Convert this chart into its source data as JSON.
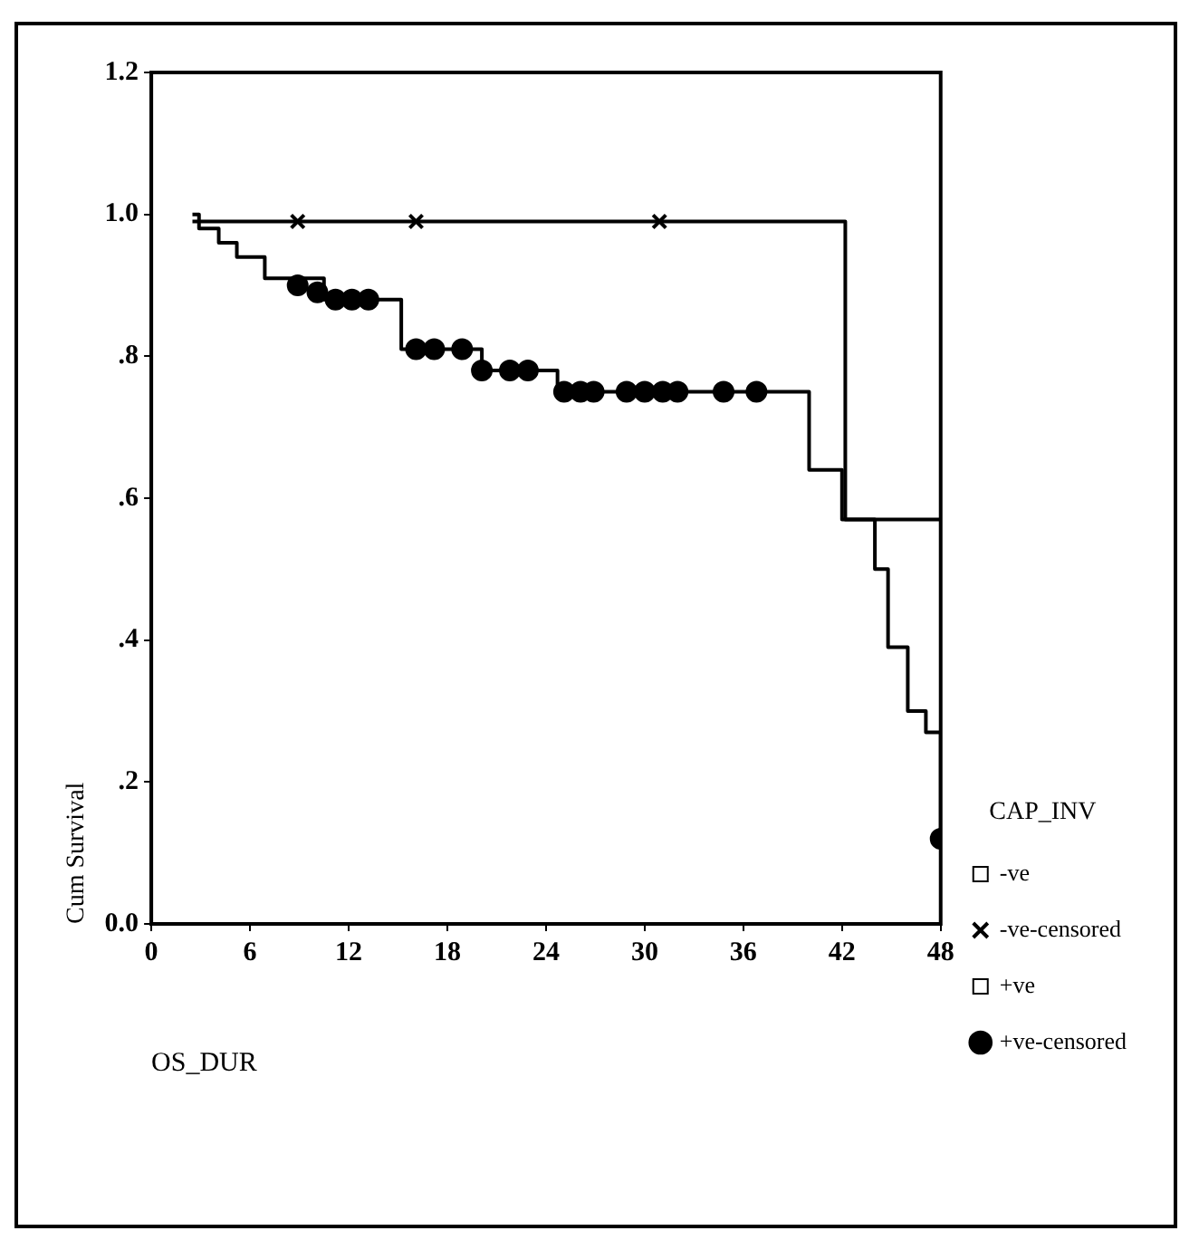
{
  "chart_data": {
    "type": "step",
    "xlabel": "OS_DUR",
    "ylabel": "Cum Survival",
    "legend_title": "CAP_INV",
    "xlim": [
      0,
      48
    ],
    "xticks": [
      0,
      6,
      12,
      18,
      24,
      30,
      36,
      42,
      48
    ],
    "ylim": [
      0,
      1.2
    ],
    "yticks": [
      {
        "value": 0,
        "label": "0.0"
      },
      {
        "value": 0.2,
        "label": ".2"
      },
      {
        "value": 0.4,
        "label": ".4"
      },
      {
        "value": 0.6,
        "label": ".6"
      },
      {
        "value": 0.8,
        "label": ".8"
      },
      {
        "value": 1,
        "label": "1.0"
      },
      {
        "value": 1.2,
        "label": "1.2"
      }
    ],
    "grid": false,
    "legend": "right",
    "line_style": "solid",
    "series": [
      {
        "name": "-ve",
        "color": "#000000",
        "marker": "none",
        "x": [
          2.5,
          42.2,
          48
        ],
        "values": [
          0.99,
          0.57,
          0.57
        ]
      },
      {
        "name": "-ve-censored",
        "type": "scatter",
        "color": "#000000",
        "marker": "cross",
        "x": [
          8.9,
          16.1,
          30.9
        ],
        "values": [
          0.99,
          0.99,
          0.99
        ]
      },
      {
        "name": "+ve",
        "color": "#000000",
        "marker": "none",
        "x": [
          2.5,
          2.9,
          4.1,
          5.2,
          6.9,
          10.5,
          15.2,
          20.1,
          24.7,
          40,
          42,
          44,
          44.8,
          46,
          47.1,
          48
        ],
        "values": [
          1,
          0.98,
          0.96,
          0.94,
          0.91,
          0.88,
          0.81,
          0.78,
          0.75,
          0.64,
          0.57,
          0.5,
          0.39,
          0.3,
          0.27,
          0.12
        ]
      },
      {
        "name": "+ve-censored",
        "type": "scatter",
        "color": "#000000",
        "marker": "circle",
        "x": [
          8.9,
          10.1,
          11.2,
          12.2,
          13.2,
          16.1,
          17.2,
          18.9,
          20.1,
          21.8,
          22.9,
          25.1,
          26.1,
          26.9,
          28.9,
          30,
          31.1,
          32,
          34.8,
          36.8,
          48
        ],
        "values": [
          0.9,
          0.89,
          0.88,
          0.88,
          0.88,
          0.81,
          0.81,
          0.81,
          0.78,
          0.78,
          0.78,
          0.75,
          0.75,
          0.75,
          0.75,
          0.75,
          0.75,
          0.75,
          0.75,
          0.75,
          0.12
        ]
      }
    ]
  }
}
